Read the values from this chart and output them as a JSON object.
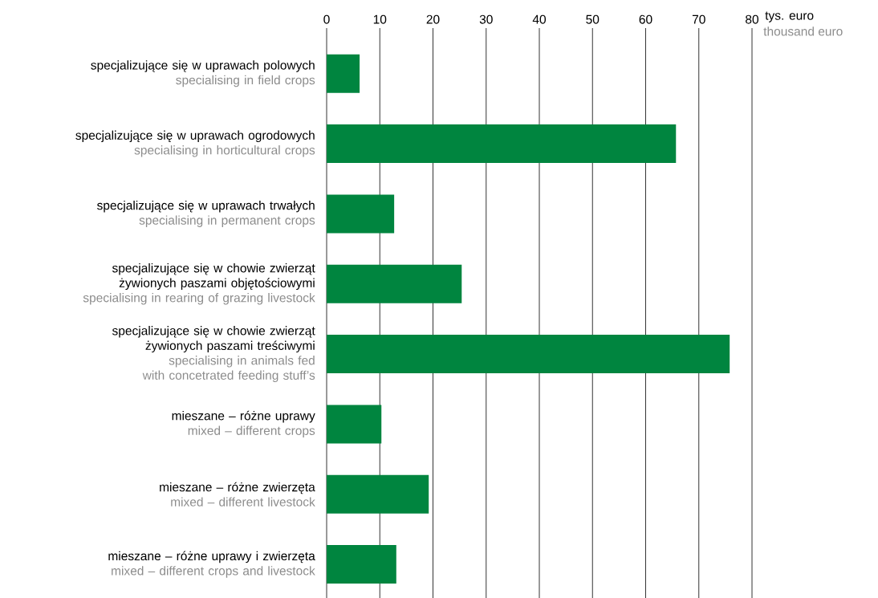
{
  "chart_data": {
    "type": "bar",
    "orientation": "horizontal",
    "categories": [
      "specjalizujące się w uprawach polowych",
      "specjalizujące się w uprawach ogrodowych",
      "specjalizujące się w uprawach trwałych",
      "specjalizujące się w chowie zwierząt żywionych paszami objętościowymi",
      "specjalizujące się w chowie zwierząt żywionych paszami treściwymi",
      "mieszane – różne uprawy",
      "mieszane – różne zwierzęta",
      "mieszane – różne uprawy i zwierzęta"
    ],
    "values": [
      6.2,
      65.7,
      12.7,
      25.4,
      75.8,
      10.3,
      19.2,
      13.1
    ],
    "color": "#00853f",
    "xlabel": "tys. euro",
    "annotations": [
      "specialising in field crops",
      "specialising in horticultural crops",
      "specialising in permanent crops",
      "specialising in rearing of grazing livestock",
      "specialising in animals fed with concetrated feeding stuff’s",
      "mixed – different crops",
      "mixed – different livestock",
      "mixed – different crops and livestock",
      "thousand euro"
    ],
    "xlim": [
      0,
      80
    ],
    "xticks": [
      0,
      10,
      20,
      30,
      40,
      50,
      60,
      70,
      80
    ],
    "grid": "x"
  }
}
